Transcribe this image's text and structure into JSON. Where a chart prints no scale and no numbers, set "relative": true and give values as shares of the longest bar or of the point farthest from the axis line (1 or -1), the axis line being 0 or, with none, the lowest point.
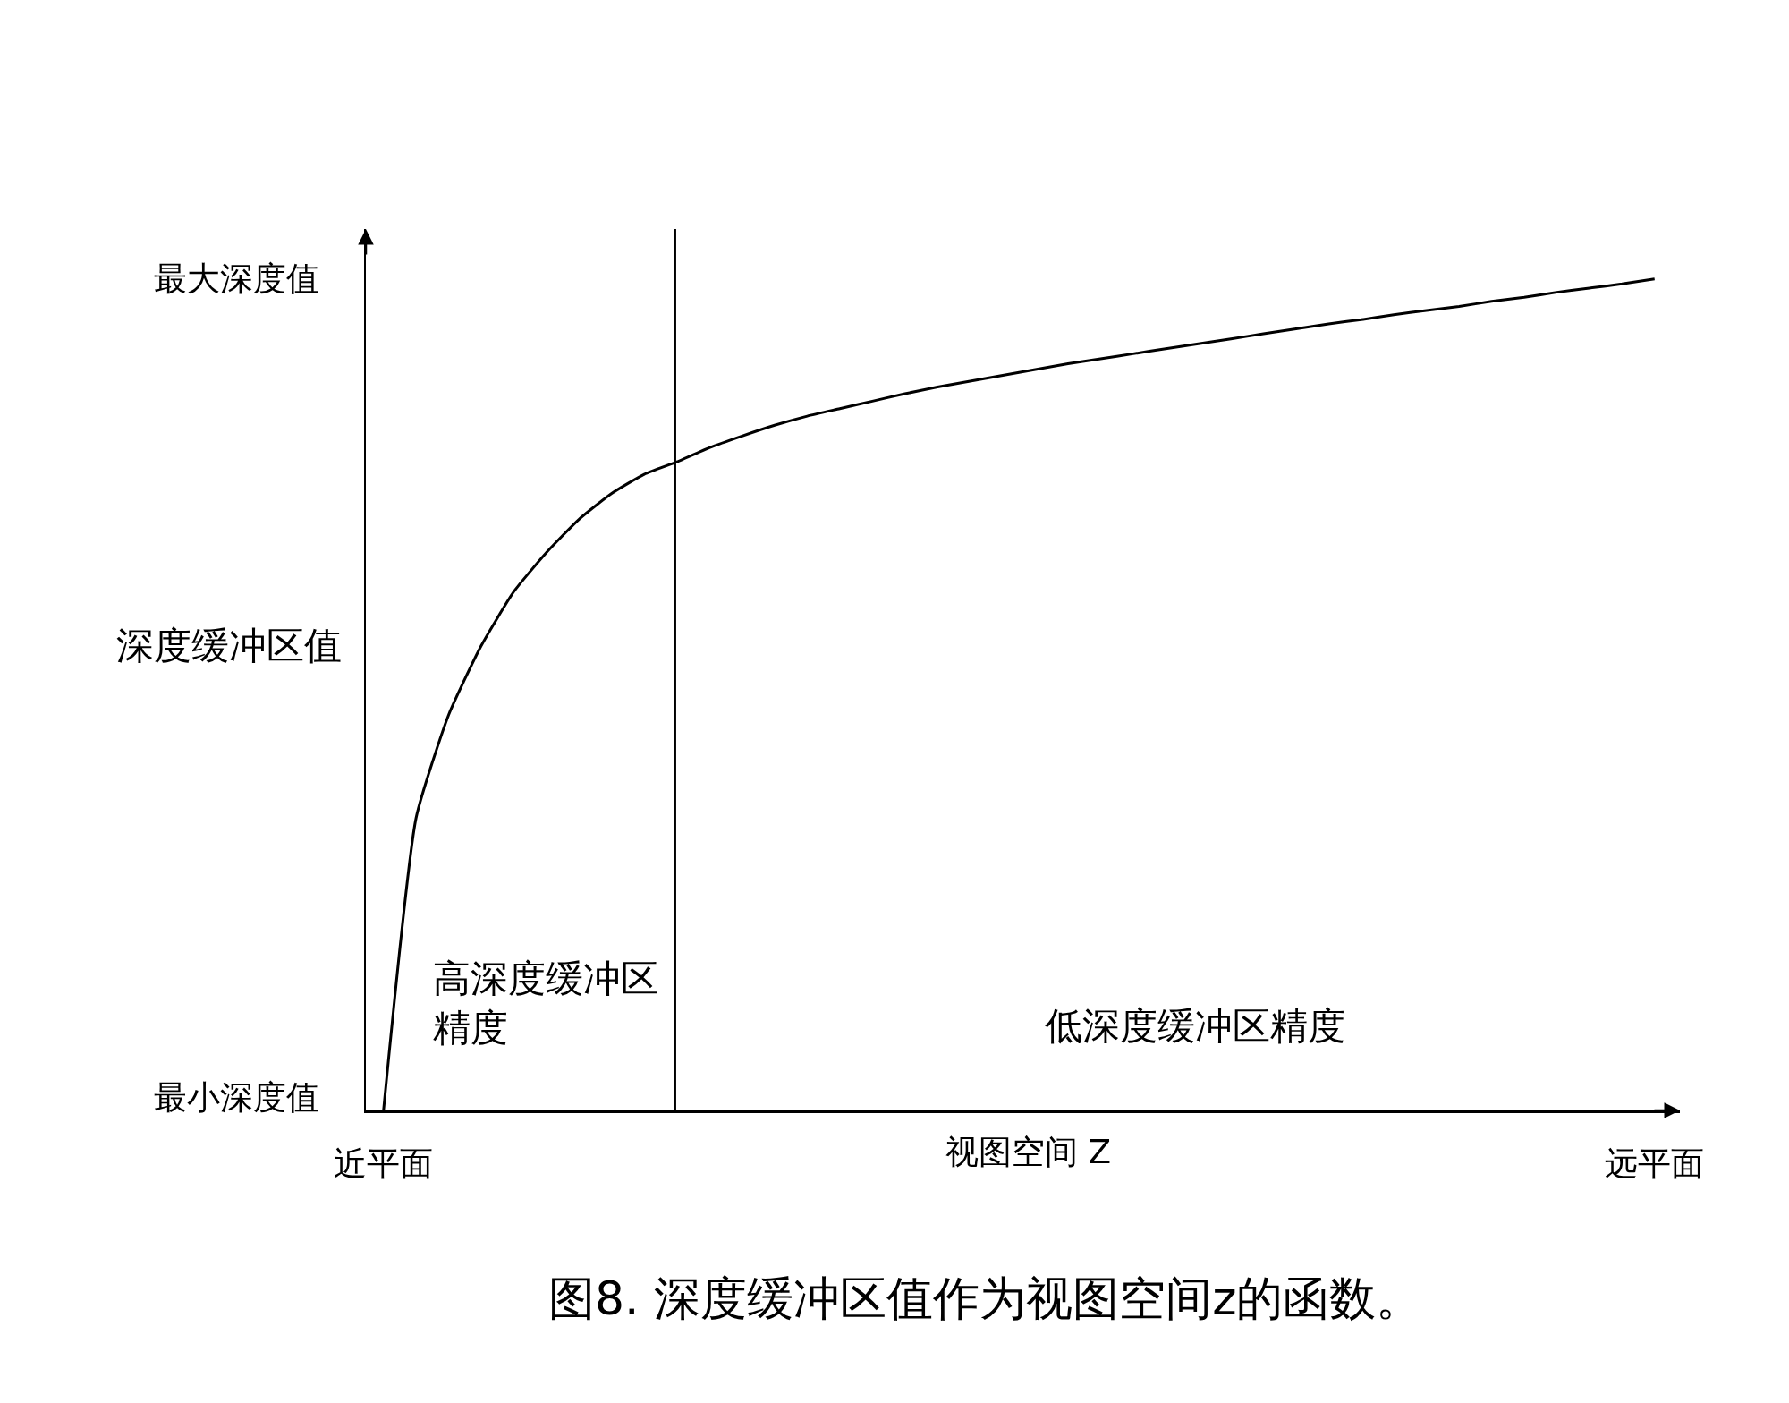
{
  "chart_data": {
    "type": "line",
    "relative": true,
    "xlabel": "视图空间 Z",
    "ylabel": "深度缓冲区值",
    "categories": [
      "近平面",
      null,
      null,
      null,
      null,
      null,
      null,
      null,
      null,
      null,
      null,
      null,
      null,
      null,
      null,
      null,
      null,
      null,
      null,
      null,
      null,
      null,
      null,
      null,
      null,
      null,
      null,
      null,
      null,
      null,
      null,
      null,
      null,
      null,
      null,
      null,
      null,
      null,
      null,
      "远平面"
    ],
    "series": [
      {
        "color": "#000000",
        "values": [
          0,
          0.352,
          0.476,
          0.559,
          0.624,
          0.671,
          0.711,
          0.742,
          0.765,
          0.78,
          0.797,
          0.811,
          0.824,
          0.835,
          0.844,
          0.853,
          0.862,
          0.87,
          0.877,
          0.884,
          0.891,
          0.898,
          0.904,
          0.91,
          0.916,
          0.922,
          0.928,
          0.934,
          0.94,
          0.946,
          0.951,
          0.957,
          0.962,
          0.967,
          0.973,
          0.978,
          0.984,
          0.989,
          0.994,
          1
        ]
      }
    ],
    "annotations": [
      "最大深度值",
      "高深度缓冲区精度",
      "低深度缓冲区精度",
      "最小深度值",
      "图8. 深度缓冲区值作为视图空间z的函数。"
    ]
  }
}
